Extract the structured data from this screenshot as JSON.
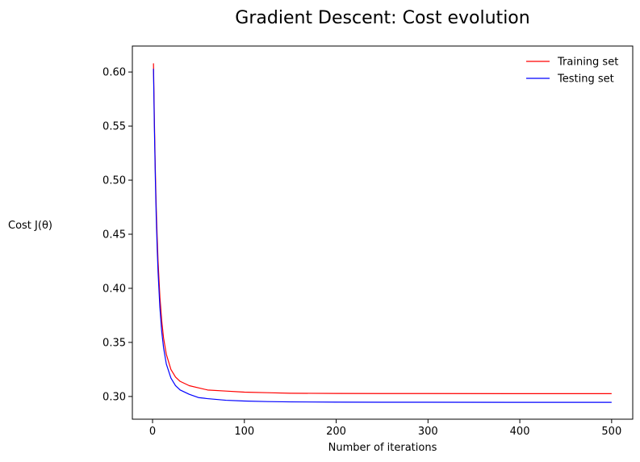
{
  "chart_data": {
    "type": "line",
    "title": "Gradient Descent: Cost evolution",
    "xlabel": "Number of iterations",
    "ylabel": "Cost J(θ)",
    "xlim": [
      -22,
      523
    ],
    "ylim": [
      0.279,
      0.624
    ],
    "xticks": [
      0,
      100,
      200,
      300,
      400,
      500
    ],
    "yticks": [
      0.3,
      0.35,
      0.4,
      0.45,
      0.5,
      0.55,
      0.6
    ],
    "x_tick_labels": [
      "0",
      "100",
      "200",
      "300",
      "400",
      "500"
    ],
    "y_tick_labels": [
      "0.30",
      "0.35",
      "0.40",
      "0.45",
      "0.50",
      "0.55",
      "0.60"
    ],
    "grid": false,
    "legend": "top-right",
    "series": [
      {
        "name": "Training set",
        "color": "#ff0000",
        "x": [
          1,
          2,
          3,
          4,
          5,
          6,
          8,
          10,
          12,
          15,
          20,
          25,
          30,
          40,
          50,
          60,
          80,
          100,
          125,
          150,
          200,
          250,
          300,
          400,
          500
        ],
        "y": [
          0.608,
          0.555,
          0.51,
          0.475,
          0.448,
          0.425,
          0.392,
          0.37,
          0.354,
          0.339,
          0.325,
          0.318,
          0.314,
          0.31,
          0.308,
          0.306,
          0.305,
          0.304,
          0.3035,
          0.303,
          0.3028,
          0.3027,
          0.3027,
          0.3026,
          0.3026
        ]
      },
      {
        "name": "Testing set",
        "color": "#0000ff",
        "x": [
          1,
          2,
          3,
          4,
          5,
          6,
          8,
          10,
          12,
          15,
          20,
          25,
          30,
          40,
          50,
          60,
          80,
          100,
          125,
          150,
          200,
          250,
          300,
          400,
          500
        ],
        "y": [
          0.603,
          0.548,
          0.503,
          0.466,
          0.438,
          0.415,
          0.382,
          0.36,
          0.345,
          0.33,
          0.317,
          0.31,
          0.306,
          0.302,
          0.299,
          0.298,
          0.2965,
          0.2958,
          0.2953,
          0.295,
          0.2948,
          0.2947,
          0.2947,
          0.2946,
          0.2946
        ]
      }
    ]
  }
}
